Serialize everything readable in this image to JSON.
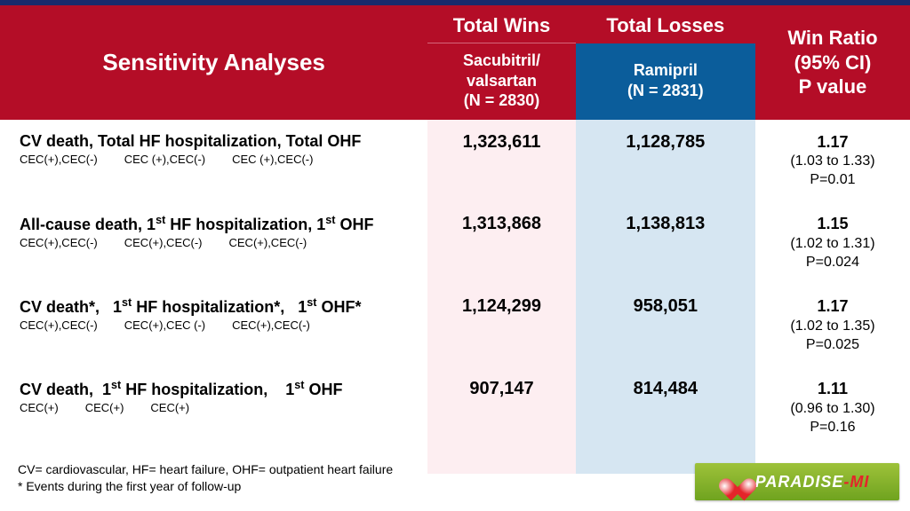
{
  "colors": {
    "header_red": "#b40d27",
    "header_blue": "#0b5d9b",
    "col_sac_bg": "#fdeef1",
    "col_ram_bg": "#d6e6f2",
    "top_stripe": "#1a2a6c",
    "logo_green_top": "#9ec23a",
    "logo_green_bottom": "#6fa31f",
    "logo_red": "#e4242a"
  },
  "table": {
    "headers": {
      "sensitivity": "Sensitivity Analyses",
      "total_wins": "Total Wins",
      "total_losses": "Total Losses",
      "win_ratio": {
        "line1": "Win Ratio",
        "line2": "(95% CI)",
        "line3": "P value"
      },
      "sac": {
        "line1": "Sacubitril/",
        "line2": "valsartan",
        "line3": "(N = 2830)"
      },
      "ram": {
        "line1": "Ramipril",
        "line2": "(N = 2831)"
      }
    },
    "rows": [
      {
        "title_html": "CV death, Total HF hospitalization, Total OHF",
        "sub": [
          "CEC(+),CEC(-)",
          "CEC (+),CEC(-)",
          "CEC (+),CEC(-)"
        ],
        "wins": "1,323,611",
        "losses": "1,128,785",
        "wr": "1.17",
        "ci": "(1.03 to 1.33)",
        "p": "P=0.01"
      },
      {
        "title_html": "All-cause death, 1<sup>st</sup> HF hospitalization, 1<sup>st</sup> OHF",
        "sub": [
          "CEC(+),CEC(-)",
          "CEC(+),CEC(-)",
          "CEC(+),CEC(-)"
        ],
        "wins": "1,313,868",
        "losses": "1,138,813",
        "wr": "1.15",
        "ci": "(1.02 to 1.31)",
        "p": "P=0.024"
      },
      {
        "title_html": "CV death*,&nbsp;&nbsp; 1<sup>st</sup> HF hospitalization*,&nbsp;&nbsp; 1<sup>st</sup> OHF*",
        "sub": [
          "CEC(+),CEC(-)",
          "CEC(+),CEC (-)",
          "CEC(+),CEC(-)"
        ],
        "wins": "1,124,299",
        "losses": "958,051",
        "wr": "1.17",
        "ci": "(1.02 to 1.35)",
        "p": "P=0.025"
      },
      {
        "title_html": "CV death,&nbsp; 1<sup>st</sup> HF hospitalization,&nbsp;&nbsp;&nbsp; 1<sup>st</sup> OHF",
        "sub": [
          "CEC(+)",
          "CEC(+)",
          "CEC(+)"
        ],
        "wins": "907,147",
        "losses": "814,484",
        "wr": "1.11",
        "ci": "(0.96 to 1.30)",
        "p": "P=0.16"
      }
    ]
  },
  "footnotes": {
    "line1": "CV= cardiovascular, HF= heart failure, OHF= outpatient heart failure",
    "line2": "* Events during the first year of follow-up"
  },
  "logo": {
    "part1": "PARADISE",
    "part2": "-MI"
  }
}
